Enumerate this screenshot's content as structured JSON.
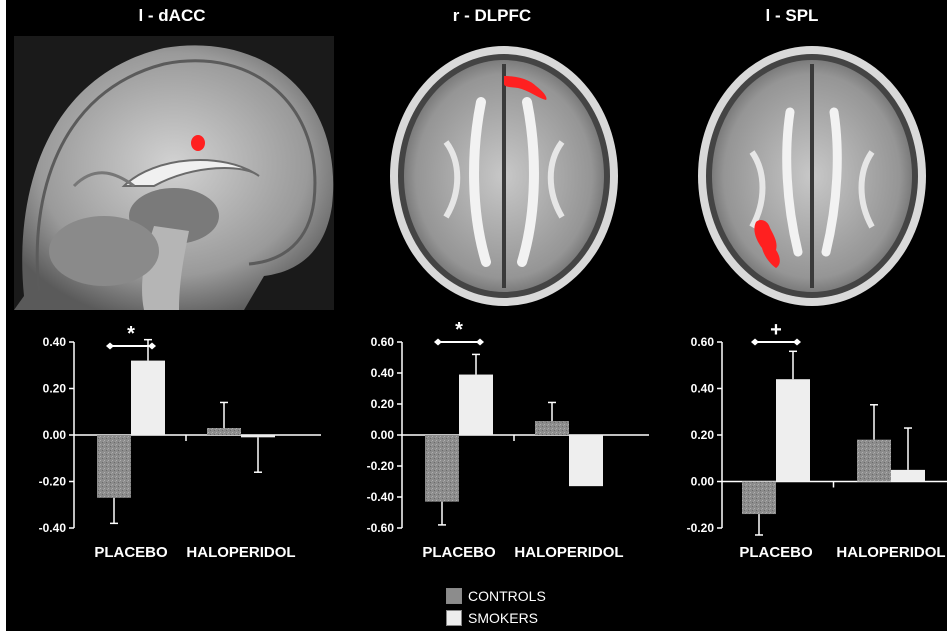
{
  "colors": {
    "background": "#000000",
    "controls": "#8c8c8c",
    "smokers": "#eeeeee",
    "activation": "#ff2020",
    "text": "#ffffff"
  },
  "panels": [
    {
      "title": "l - dACC",
      "view": "sagittal"
    },
    {
      "title": "r - DLPFC",
      "view": "axial"
    },
    {
      "title": "l - SPL",
      "view": "axial"
    }
  ],
  "legend": {
    "items": [
      {
        "label": "CONTROLS",
        "color": "#8c8c8c"
      },
      {
        "label": "SMOKERS",
        "color": "#eeeeee"
      }
    ]
  },
  "chart_data": [
    {
      "type": "bar",
      "title": "l - dACC",
      "categories": [
        "PLACEBO",
        "HALOPERIDOL"
      ],
      "series": [
        {
          "name": "CONTROLS",
          "values": [
            -0.27,
            0.03
          ],
          "errors": [
            0.11,
            0.11
          ]
        },
        {
          "name": "SMOKERS",
          "values": [
            0.32,
            -0.01
          ],
          "errors": [
            0.09,
            0.15
          ]
        }
      ],
      "yticks": [
        "0.40",
        "0.20",
        "0.00",
        "-0.20",
        "-0.40"
      ],
      "ylim": [
        -0.4,
        0.4
      ],
      "significance": {
        "category": "PLACEBO",
        "label": "*"
      }
    },
    {
      "type": "bar",
      "title": "r - DLPFC",
      "categories": [
        "PLACEBO",
        "HALOPERIDOL"
      ],
      "series": [
        {
          "name": "CONTROLS",
          "values": [
            -0.43,
            0.09
          ],
          "errors": [
            0.15,
            0.12
          ]
        },
        {
          "name": "SMOKERS",
          "values": [
            0.39,
            -0.33
          ],
          "errors": [
            0.13,
            0.0
          ]
        }
      ],
      "yticks": [
        "0.60",
        "0.40",
        "0.20",
        "0.00",
        "-0.20",
        "-0.40",
        "-0.60"
      ],
      "ylim": [
        -0.6,
        0.6
      ],
      "significance": {
        "category": "PLACEBO",
        "label": "*"
      }
    },
    {
      "type": "bar",
      "title": "l - SPL",
      "categories": [
        "PLACEBO",
        "HALOPERIDOL"
      ],
      "series": [
        {
          "name": "CONTROLS",
          "values": [
            -0.14,
            0.18
          ],
          "errors": [
            0.09,
            0.15
          ]
        },
        {
          "name": "SMOKERS",
          "values": [
            0.44,
            0.05
          ],
          "errors": [
            0.12,
            0.18
          ]
        }
      ],
      "yticks": [
        "0.60",
        "0.40",
        "0.20",
        "0.00",
        "-0.20"
      ],
      "ylim": [
        -0.2,
        0.6
      ],
      "significance": {
        "category": "PLACEBO",
        "label": "+"
      }
    }
  ]
}
